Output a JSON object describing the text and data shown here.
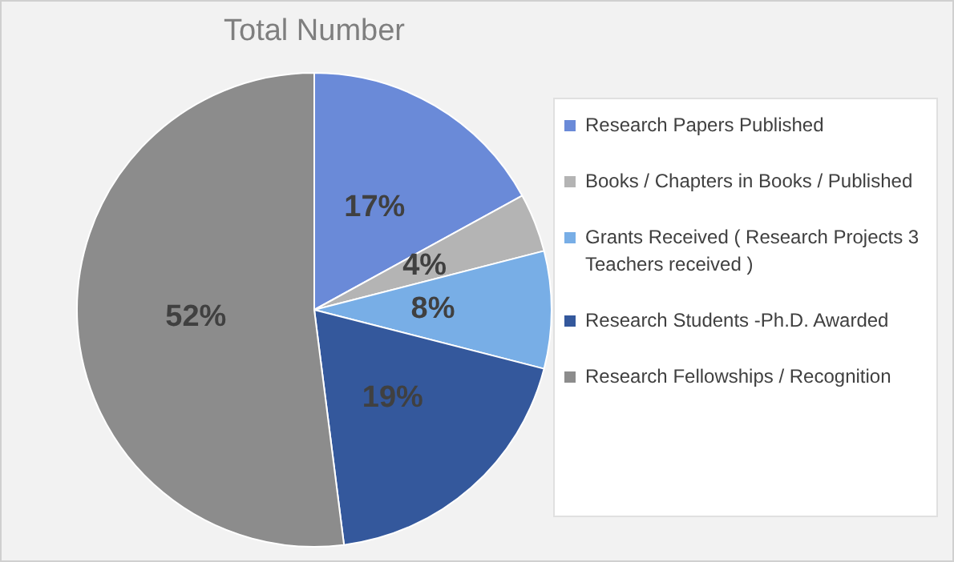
{
  "chart_data": {
    "type": "pie",
    "title": "Total Number",
    "categories": [
      "Research Papers Published",
      "Books / Chapters in Books / Published",
      "Grants Received ( Research Projects 3 Teachers received )",
      "Research Students -Ph.D. Awarded",
      "Research Fellowships / Recognition"
    ],
    "values": [
      17,
      4,
      8,
      19,
      52
    ],
    "colors": [
      "#6a8ad8",
      "#b4b4b4",
      "#78aee6",
      "#34589c",
      "#8c8c8c"
    ],
    "value_labels": [
      "17%",
      "4%",
      "8%",
      "19%",
      "52%"
    ],
    "legend": "right"
  }
}
